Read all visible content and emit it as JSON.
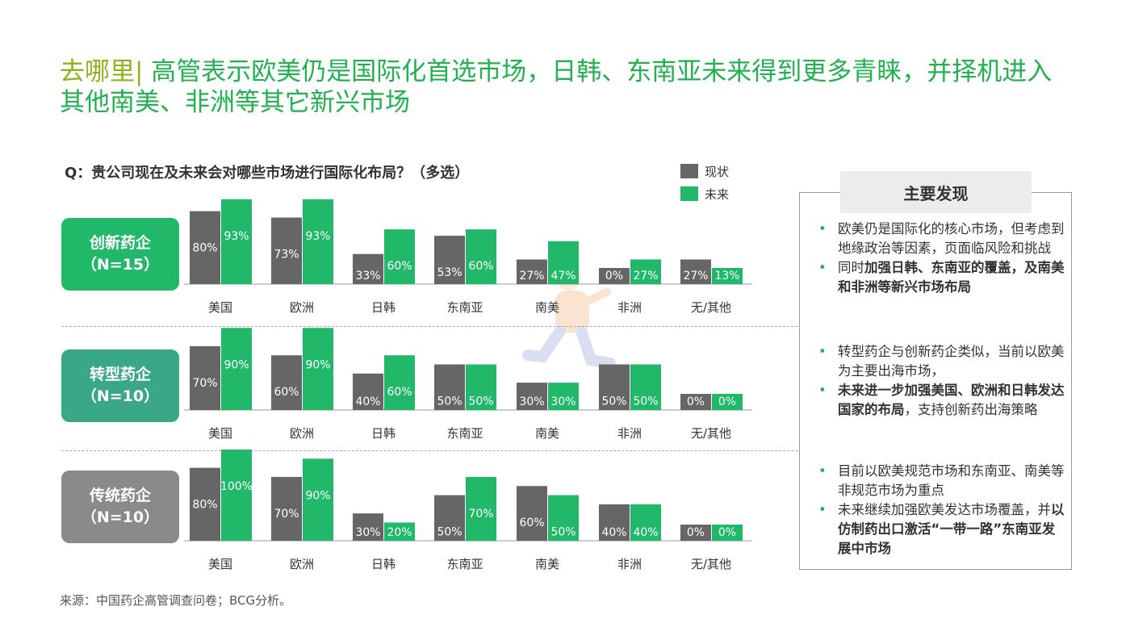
{
  "title": {
    "keyword": "去哪里",
    "separator": "|",
    "text": " 高管表示欧美仍是国际化首选市场，日韩、东南亚未来得到更多青睐，并择机进入其他南美、非洲等其它新兴市场"
  },
  "question": "Q：贵公司现在及未来会对哪些市场进行国际化布局？（多选）",
  "legend": {
    "current": "现状",
    "future": "未来"
  },
  "colors": {
    "current": "#666666",
    "future": "#21b86a",
    "title": "#21b14f",
    "keyword": "#8db31c",
    "group_innovative": "#21b86a",
    "group_transition": "#3aa886",
    "group_traditional": "#8a8a8a"
  },
  "groups": [
    {
      "name": "创新药企",
      "n": "（N=15）"
    },
    {
      "name": "转型药企",
      "n": "（N=10）"
    },
    {
      "name": "传统药企",
      "n": "（N=10）"
    }
  ],
  "chart_data": [
    {
      "type": "bar",
      "categories": [
        "美国",
        "欧洲",
        "日韩",
        "东南亚",
        "南美",
        "非洲",
        "无/其他"
      ],
      "series": [
        {
          "name": "现状",
          "values": [
            80,
            73,
            33,
            53,
            27,
            0,
            27
          ]
        },
        {
          "name": "未来",
          "values": [
            93,
            93,
            60,
            60,
            47,
            27,
            13
          ]
        }
      ],
      "unit": "%"
    },
    {
      "type": "bar",
      "categories": [
        "美国",
        "欧洲",
        "日韩",
        "东南亚",
        "南美",
        "非洲",
        "无/其他"
      ],
      "series": [
        {
          "name": "现状",
          "values": [
            70,
            60,
            40,
            50,
            30,
            50,
            0
          ]
        },
        {
          "name": "未来",
          "values": [
            90,
            90,
            60,
            50,
            30,
            50,
            0
          ]
        }
      ],
      "unit": "%"
    },
    {
      "type": "bar",
      "categories": [
        "美国",
        "欧洲",
        "日韩",
        "东南亚",
        "南美",
        "非洲",
        "无/其他"
      ],
      "series": [
        {
          "name": "现状",
          "values": [
            80,
            70,
            30,
            50,
            60,
            40,
            0
          ]
        },
        {
          "name": "未来",
          "values": [
            100,
            90,
            20,
            70,
            50,
            40,
            0
          ]
        }
      ],
      "unit": "%"
    }
  ],
  "findings": {
    "header": "主要发现",
    "blocks": [
      {
        "items": [
          {
            "parts": [
              {
                "t": "欧美仍是国际化的核心市场，但考虑到地缘政治等因素，页面临风险和挑战",
                "b": false
              }
            ]
          },
          {
            "parts": [
              {
                "t": "同时",
                "b": false
              },
              {
                "t": "加强日韩、东南亚的覆盖，及南美和非洲等新兴市场布局",
                "b": true
              }
            ]
          }
        ]
      },
      {
        "items": [
          {
            "parts": [
              {
                "t": "转型药企与创新药企类似，当前以欧美为主要出海市场，",
                "b": false
              }
            ]
          },
          {
            "parts": [
              {
                "t": "未来进一步加强美国、欧洲和日韩发达国家的布局",
                "b": true
              },
              {
                "t": "，支持创新药出海策略",
                "b": false
              }
            ]
          }
        ]
      },
      {
        "items": [
          {
            "parts": [
              {
                "t": "目前以欧美规范市场和东南亚、南美等非规范市场为重点",
                "b": false
              }
            ]
          },
          {
            "parts": [
              {
                "t": "未来继续加强欧美发达市场覆盖，并",
                "b": false
              },
              {
                "t": "以仿制药出口激活“一带一路”东南亚发展中市场",
                "b": true
              }
            ]
          }
        ]
      }
    ]
  },
  "source": "来源：中国药企高管调查问卷；BCG分析。"
}
